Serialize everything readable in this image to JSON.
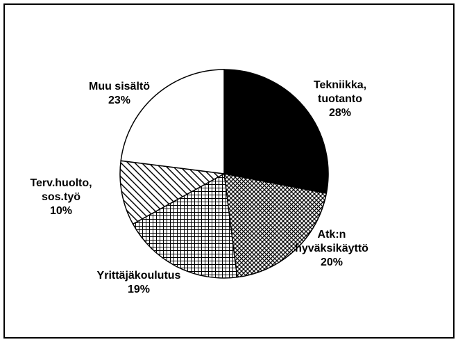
{
  "chart_data": {
    "type": "pie",
    "categories": [
      "Tekniikka, tuotanto",
      "Atk:n hyväksikäyttö",
      "Yrittäjäkoulutus",
      "Terv.huolto, sos.työ",
      "Muu sisältö"
    ],
    "values": [
      28,
      20,
      19,
      10,
      23
    ],
    "value_labels": [
      "28%",
      "20%",
      "19%",
      "10%",
      "23%"
    ]
  }
}
